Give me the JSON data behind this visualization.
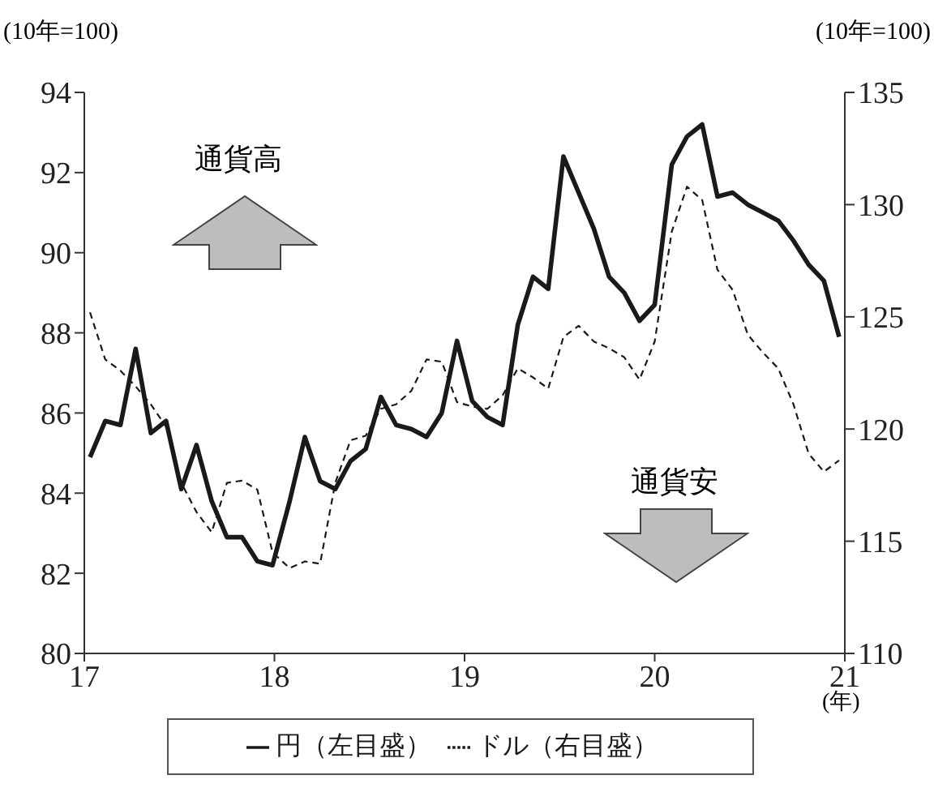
{
  "chart_data": {
    "type": "line",
    "ylabel": "(10年=100)",
    "y2label": "(10年=100)",
    "xlabel": "(年)",
    "annotations": [
      "通貨高",
      "通貨安"
    ],
    "x": [
      17.03,
      17.11,
      17.19,
      17.27,
      17.35,
      17.43,
      17.51,
      17.59,
      17.67,
      17.75,
      17.83,
      17.91,
      17.99,
      18.08,
      18.16,
      18.24,
      18.32,
      18.4,
      18.48,
      18.56,
      18.64,
      18.72,
      18.8,
      18.88,
      18.96,
      19.04,
      19.12,
      19.2,
      19.28,
      19.36,
      19.44,
      19.52,
      19.6,
      19.68,
      19.76,
      19.84,
      19.92,
      20.0,
      20.09,
      20.17,
      20.25,
      20.33,
      20.41,
      20.49,
      20.57,
      20.65,
      20.73,
      20.81,
      20.89,
      20.97
    ],
    "series": [
      {
        "name": "円（左目盛）",
        "color": "#1a1a1a",
        "line_style": "solid",
        "values": [
          84.9,
          85.8,
          85.7,
          87.6,
          85.5,
          85.8,
          84.1,
          85.2,
          83.8,
          82.9,
          82.9,
          82.3,
          82.2,
          83.8,
          85.4,
          84.3,
          84.1,
          84.8,
          85.1,
          86.4,
          85.7,
          85.6,
          85.4,
          86.0,
          87.8,
          86.3,
          85.9,
          85.7,
          88.2,
          89.4,
          89.1,
          92.4,
          91.5,
          90.6,
          89.4,
          89.0,
          88.3,
          88.7,
          92.2,
          92.9,
          93.2,
          91.4,
          91.5,
          91.2,
          91.0,
          90.8,
          90.3,
          89.7,
          89.3,
          87.9
        ]
      },
      {
        "name": "ドル（右目盛）",
        "color": "#1a1a1a",
        "line_style": "dashed",
        "axis": "y2",
        "values": [
          125.2,
          123.1,
          122.6,
          121.9,
          121.1,
          120.1,
          117.6,
          116.3,
          115.4,
          117.6,
          117.7,
          117.3,
          114.5,
          113.8,
          114.1,
          114.0,
          117.6,
          119.5,
          119.7,
          120.9,
          121.1,
          121.7,
          123.1,
          123.0,
          121.2,
          121.0,
          120.9,
          121.5,
          122.7,
          122.3,
          121.8,
          124.1,
          124.6,
          123.9,
          123.6,
          123.2,
          122.2,
          123.9,
          128.8,
          130.8,
          130.2,
          127.1,
          126.2,
          124.2,
          123.4,
          122.7,
          121.1,
          118.9,
          118.1,
          118.6
        ]
      }
    ],
    "xlim": [
      17,
      21
    ],
    "xticks": [
      17,
      18,
      19,
      20,
      21
    ],
    "ylim": [
      80,
      94
    ],
    "yticks": [
      80,
      82,
      84,
      86,
      88,
      90,
      92,
      94
    ],
    "y2lim": [
      110,
      135
    ],
    "y2ticks": [
      110,
      115,
      120,
      125,
      130,
      135
    ],
    "grid": false,
    "legend": "bottom",
    "marker": "none"
  }
}
